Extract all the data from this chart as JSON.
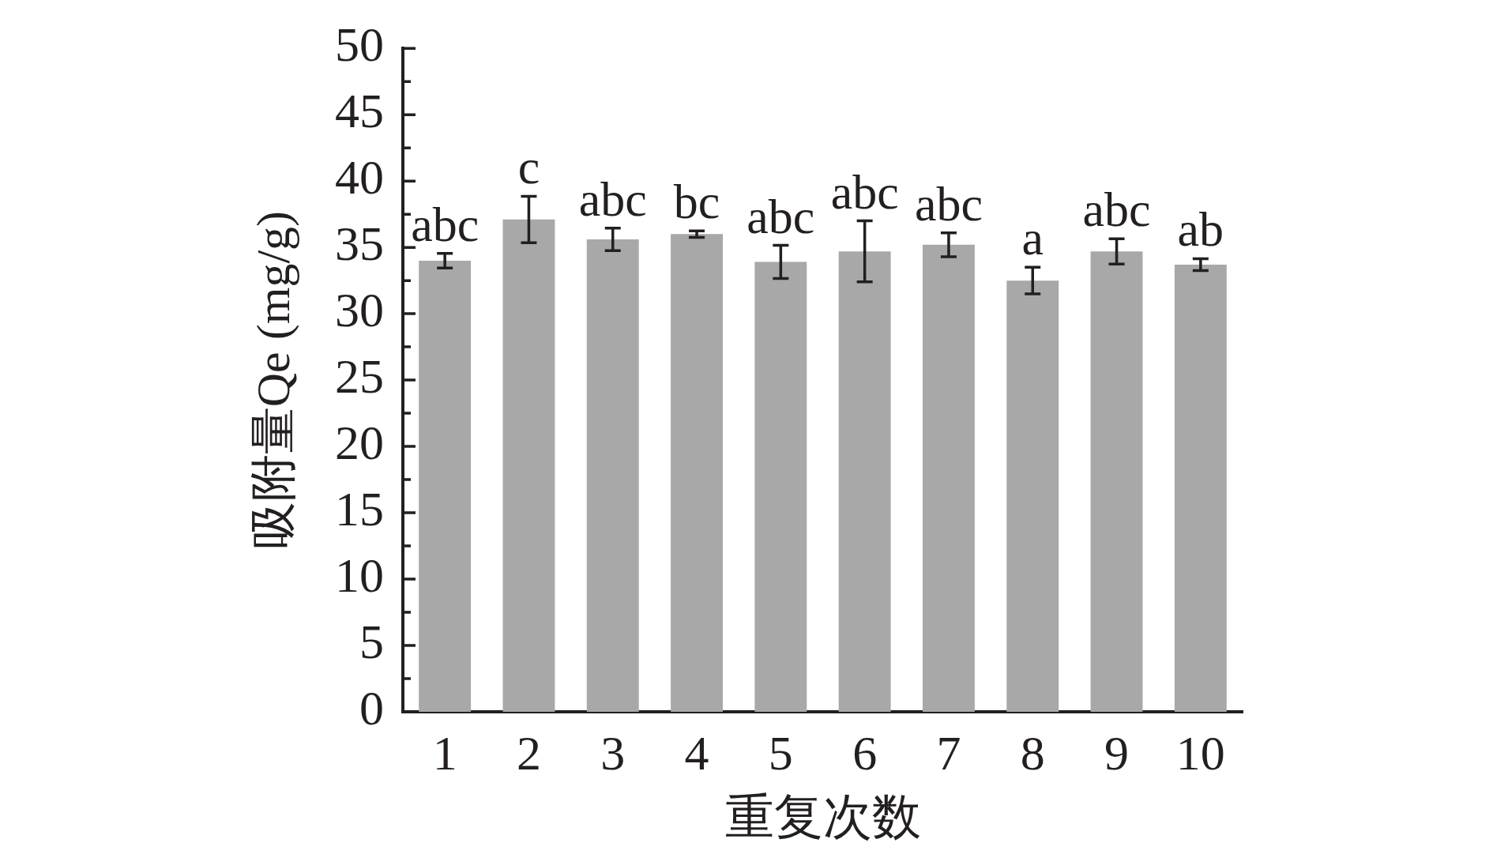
{
  "chart_data": {
    "type": "bar",
    "xlabel": "重复次数",
    "ylabel": "吸附量Qe (mg/g)",
    "categories": [
      "1",
      "2",
      "3",
      "4",
      "5",
      "6",
      "7",
      "8",
      "9",
      "10"
    ],
    "values": [
      34.0,
      37.1,
      35.6,
      36.0,
      33.9,
      34.7,
      35.2,
      32.5,
      34.7,
      33.7
    ],
    "errors": [
      0.55,
      1.75,
      0.85,
      0.25,
      1.25,
      2.3,
      0.9,
      1.0,
      0.95,
      0.45
    ],
    "color": "#a8a8a8",
    "ylim": [
      0,
      50
    ],
    "yticks": [
      0,
      {
        "value": 2.5,
        "label": null
      },
      5,
      {
        "value": 7.5,
        "label": null
      },
      10,
      {
        "value": 12.5,
        "label": null
      },
      15,
      {
        "value": 17.5,
        "label": null
      },
      20,
      {
        "value": 22.5,
        "label": null
      },
      25,
      {
        "value": 27.5,
        "label": null
      },
      30,
      {
        "value": 32.5,
        "label": null
      },
      35,
      {
        "value": 37.5,
        "label": null
      },
      40,
      {
        "value": 42.5,
        "label": null
      },
      45,
      {
        "value": 47.5,
        "label": null
      },
      50
    ],
    "annotations": [
      "abc",
      "c",
      "abc",
      "bc",
      "abc",
      "abc",
      "abc",
      "a",
      "abc",
      "ab"
    ]
  }
}
